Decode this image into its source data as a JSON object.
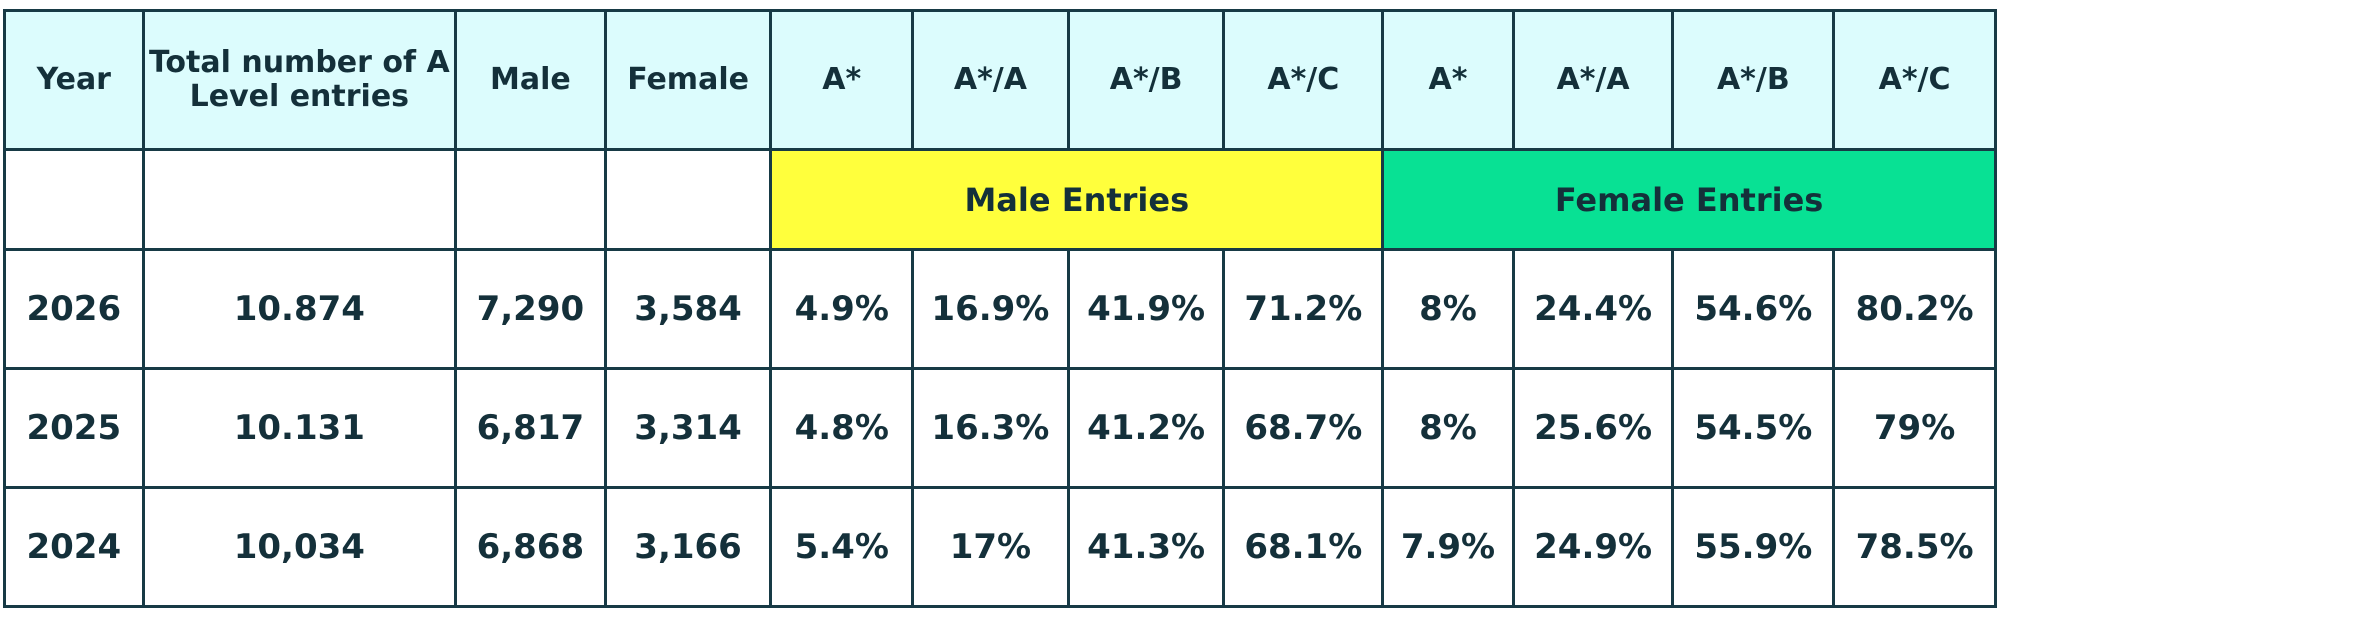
{
  "table": {
    "headers": {
      "year": "Year",
      "total": "Total number of A Level entries",
      "male": "Male",
      "female": "Female",
      "male_grades": [
        "A*",
        "A*/A",
        "A*/B",
        "A*/C"
      ],
      "female_grades": [
        "A*",
        "A*/A",
        "A*/B",
        "A*/C"
      ]
    },
    "groups": {
      "male": "Male Entries",
      "female": "Female Entries",
      "male_color": "#ffff3c",
      "female_color": "#08e194"
    },
    "header_color": "#dcfcfd",
    "border_color": "#173a45",
    "rows": [
      {
        "year": "2026",
        "total": "10.874",
        "male": "7,290",
        "female": "3,584",
        "male_grades": [
          "4.9%",
          "16.9%",
          "41.9%",
          "71.2%"
        ],
        "female_grades": [
          "8%",
          "24.4%",
          "54.6%",
          "80.2%"
        ]
      },
      {
        "year": "2025",
        "total": "10.131",
        "male": "6,817",
        "female": "3,314",
        "male_grades": [
          "4.8%",
          "16.3%",
          "41.2%",
          "68.7%"
        ],
        "female_grades": [
          "8%",
          "25.6%",
          "54.5%",
          "79%"
        ]
      },
      {
        "year": "2024",
        "total": "10,034",
        "male": "6,868",
        "female": "3,166",
        "male_grades": [
          "5.4%",
          "17%",
          "41.3%",
          "68.1%"
        ],
        "female_grades": [
          "7.9%",
          "24.9%",
          "55.9%",
          "78.5%"
        ]
      }
    ]
  }
}
